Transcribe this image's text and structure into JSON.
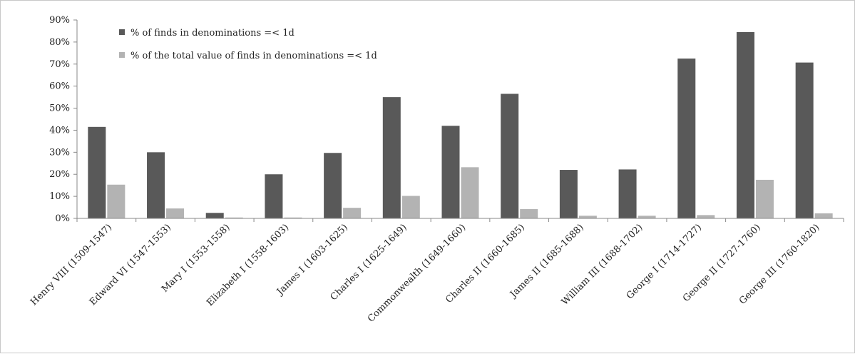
{
  "chart_data": {
    "type": "bar",
    "categories": [
      "Henry VIII (1509-1547)",
      "Edward VI (1547-1553)",
      "Mary I (1553-1558)",
      "Elizabeth I (1558-1603)",
      "James I (1603-1625)",
      "Charles I (1625-1649)",
      "Commonwealth (1649-1660)",
      "Charles II (1660-1685)",
      "James II (1685-1688)",
      "William III (1688-1702)",
      "George I (1714-1727)",
      "George II (1727-1760)",
      "George III (1760-1820)"
    ],
    "series": [
      {
        "name": "% of finds in denominations =< 1d",
        "color": "#595959",
        "values": [
          41.5,
          30,
          2.5,
          20,
          29.7,
          55,
          42,
          56.5,
          22,
          22.2,
          72.5,
          84.5,
          70.7
        ]
      },
      {
        "name": "% of the total value of finds in denominations =< 1d",
        "color": "#b3b3b3",
        "values": [
          15.3,
          4.5,
          0.4,
          0.4,
          4.8,
          10.2,
          23.2,
          4.2,
          1.2,
          1.2,
          1.5,
          17.5,
          2.3
        ]
      }
    ],
    "title": "",
    "xlabel": "",
    "ylabel": "",
    "ylim": [
      0,
      90
    ],
    "y_ticks": [
      "0%",
      "10%",
      "20%",
      "30%",
      "40%",
      "50%",
      "60%",
      "70%",
      "80%",
      "90%"
    ],
    "grid": false,
    "legend_position": "top-left"
  }
}
